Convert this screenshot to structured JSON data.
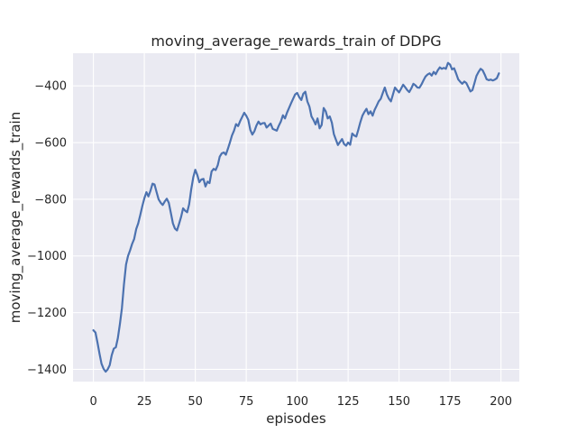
{
  "chart_data": {
    "type": "line",
    "title": "moving_average_rewards_train of DDPG",
    "xlabel": "episodes",
    "ylabel": "moving_average_rewards_train",
    "x_ticks": [
      0,
      25,
      50,
      75,
      100,
      125,
      150,
      175,
      200
    ],
    "y_ticks": [
      -400,
      -600,
      -800,
      -1000,
      -1200,
      -1400
    ],
    "xlim": [
      -10,
      209
    ],
    "ylim": [
      -1443,
      -285
    ],
    "grid": true,
    "legend_position": "none",
    "style": {
      "figure_bg": "#ffffff",
      "plot_bg": "#eaeaf2",
      "grid_color": "#ffffff",
      "line_color": "#4c72b0",
      "text_color": "#262626",
      "line_width": 2.2
    },
    "series": [
      {
        "name": "DDPG moving average rewards (train)",
        "x_start": 0,
        "x_step": 1,
        "values": [
          -1262,
          -1270,
          -1305,
          -1345,
          -1380,
          -1398,
          -1408,
          -1400,
          -1385,
          -1350,
          -1327,
          -1322,
          -1290,
          -1240,
          -1185,
          -1100,
          -1030,
          -1000,
          -980,
          -958,
          -940,
          -905,
          -885,
          -855,
          -825,
          -797,
          -775,
          -790,
          -770,
          -745,
          -748,
          -775,
          -800,
          -812,
          -820,
          -808,
          -798,
          -812,
          -848,
          -885,
          -903,
          -910,
          -888,
          -863,
          -832,
          -840,
          -846,
          -818,
          -765,
          -722,
          -696,
          -715,
          -740,
          -730,
          -728,
          -755,
          -738,
          -743,
          -702,
          -693,
          -697,
          -680,
          -650,
          -638,
          -635,
          -643,
          -622,
          -600,
          -575,
          -558,
          -535,
          -542,
          -525,
          -510,
          -495,
          -505,
          -520,
          -555,
          -572,
          -560,
          -540,
          -526,
          -536,
          -532,
          -531,
          -547,
          -540,
          -533,
          -552,
          -555,
          -558,
          -540,
          -526,
          -504,
          -515,
          -495,
          -478,
          -462,
          -446,
          -430,
          -425,
          -440,
          -450,
          -428,
          -421,
          -455,
          -473,
          -508,
          -520,
          -536,
          -515,
          -550,
          -538,
          -478,
          -490,
          -515,
          -508,
          -530,
          -570,
          -590,
          -609,
          -598,
          -588,
          -605,
          -611,
          -600,
          -608,
          -568,
          -575,
          -579,
          -555,
          -528,
          -505,
          -492,
          -481,
          -500,
          -490,
          -505,
          -485,
          -470,
          -455,
          -446,
          -425,
          -406,
          -430,
          -445,
          -455,
          -430,
          -406,
          -415,
          -423,
          -410,
          -396,
          -405,
          -415,
          -422,
          -409,
          -393,
          -398,
          -406,
          -407,
          -395,
          -380,
          -367,
          -360,
          -356,
          -364,
          -351,
          -359,
          -345,
          -335,
          -340,
          -337,
          -340,
          -319,
          -325,
          -342,
          -338,
          -356,
          -377,
          -386,
          -393,
          -385,
          -390,
          -405,
          -420,
          -415,
          -390,
          -365,
          -351,
          -340,
          -345,
          -360,
          -377,
          -380,
          -378,
          -381,
          -378,
          -373,
          -356
        ]
      }
    ]
  }
}
